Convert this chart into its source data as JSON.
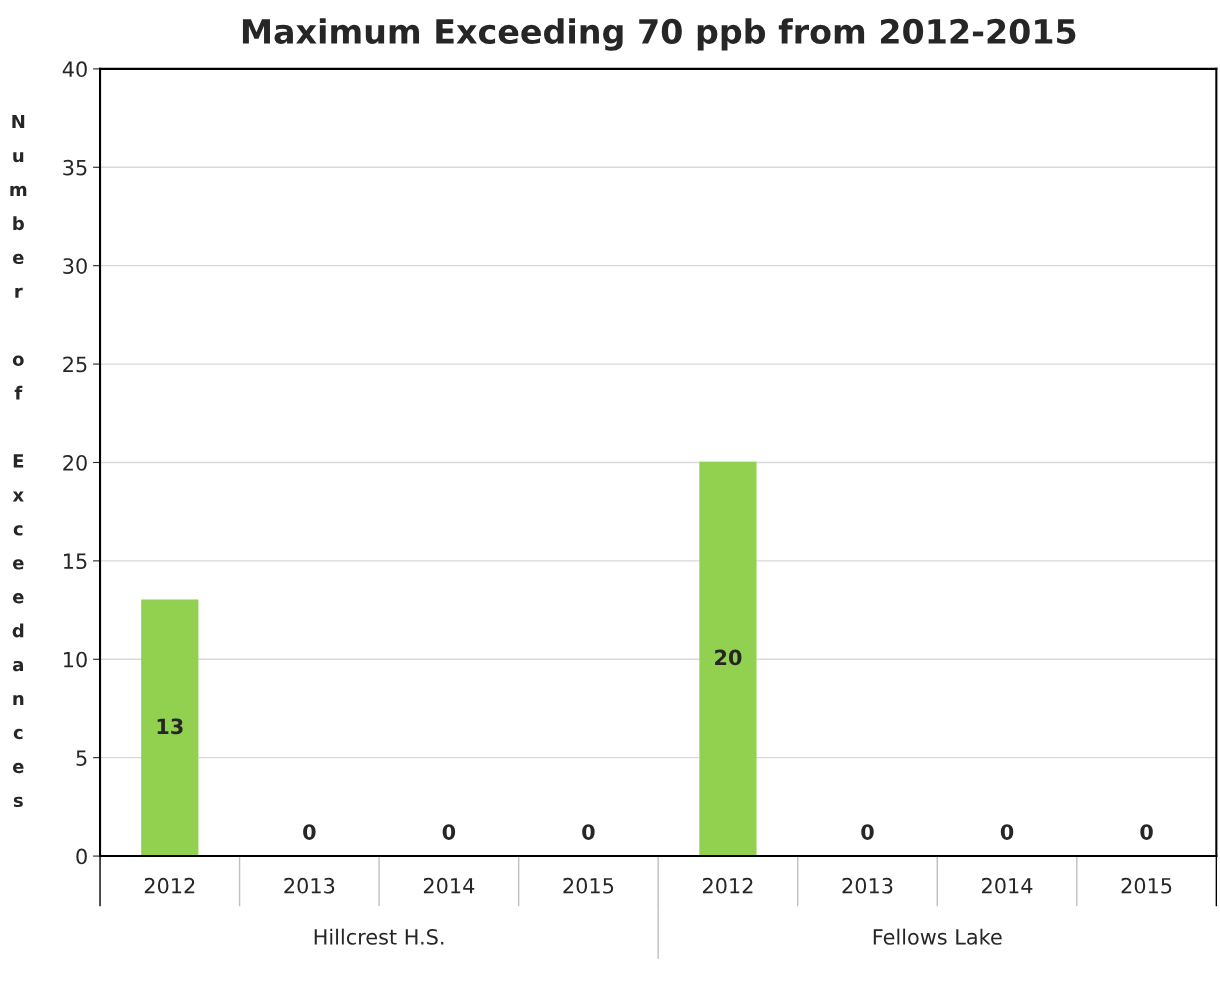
{
  "chart_data": {
    "type": "bar",
    "title": "Maximum Exceeding 70 ppb from 2012-2015",
    "ylabel": "Number of Exceedances",
    "categories": [
      "2012",
      "2013",
      "2014",
      "2015",
      "2012",
      "2013",
      "2014",
      "2015"
    ],
    "values": [
      13,
      0,
      0,
      0,
      20,
      0,
      0,
      0
    ],
    "color": "#92d050",
    "annotations": [
      "Hillcrest H.S.",
      "Fellows Lake"
    ],
    "ylim": [
      0,
      40
    ],
    "yticks": [
      0,
      5,
      10,
      15,
      20,
      25,
      30,
      35,
      40
    ],
    "grid": "y",
    "data_labels": true
  }
}
